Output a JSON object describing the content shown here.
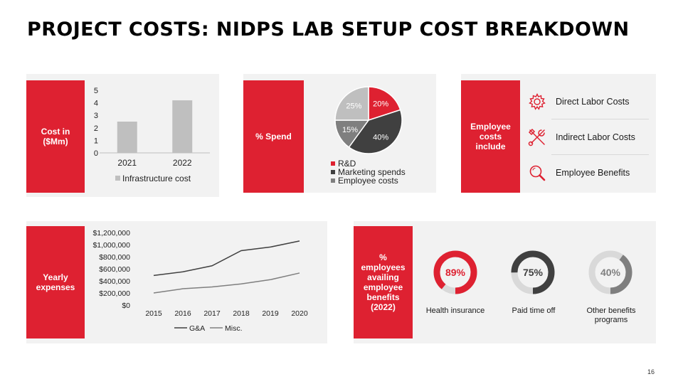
{
  "title": "PROJECT COSTS: NIDPS LAB SETUP COST BREAKDOWN",
  "page_number": "16",
  "colors": {
    "accent": "#de2131",
    "panel": "#f2f2f2",
    "bar": "#bfbfbf",
    "dark": "#404040",
    "mid": "#7f7f7f",
    "track": "#d9d9d9"
  },
  "panels": {
    "cost": {
      "label": "Cost in\n($Mm)"
    },
    "spend": {
      "label": "% Spend"
    },
    "employee": {
      "label": "Employee\ncosts\ninclude",
      "items": [
        {
          "label": "Direct Labor Costs",
          "icon": "gear-icon"
        },
        {
          "label": "Indirect Labor Costs",
          "icon": "tools-icon"
        },
        {
          "label": "Employee Benefits",
          "icon": "magnifier-icon"
        }
      ]
    },
    "yearly": {
      "label": "Yearly\nexpenses"
    },
    "benefits": {
      "label": "%\nemployees\navailing\nemployee\nbenefits\n(2022)"
    }
  },
  "chart_data": [
    {
      "type": "bar",
      "categories": [
        "2021",
        "2022"
      ],
      "series": [
        {
          "name": "Infrastructure cost",
          "values": [
            2.5,
            4.2
          ]
        }
      ],
      "yticks": [
        "0",
        "1",
        "2",
        "3",
        "4",
        "5"
      ],
      "ylim": [
        0,
        5
      ],
      "legend": "bottom"
    },
    {
      "type": "pie",
      "labels": [
        "R&D",
        "Marketing spends",
        "Employee costs",
        ""
      ],
      "values": [
        20,
        40,
        15,
        25
      ],
      "data_labels": [
        "20%",
        "40%",
        "15%",
        "25%"
      ],
      "colors": [
        "#de2131",
        "#404040",
        "#7f7f7f",
        "#bfbfbf"
      ],
      "legend": "bottom"
    },
    {
      "type": "line",
      "x": [
        "2015",
        "2016",
        "2017",
        "2018",
        "2019",
        "2020"
      ],
      "series": [
        {
          "name": "G&A",
          "values": [
            490000,
            550000,
            650000,
            900000,
            960000,
            1060000
          ],
          "color": "#404040"
        },
        {
          "name": "Misc.",
          "values": [
            200000,
            270000,
            300000,
            350000,
            420000,
            530000
          ],
          "color": "#7f7f7f"
        }
      ],
      "yticks": [
        "$0",
        "$200,000",
        "$400,000",
        "$600,000",
        "$800,000",
        "$1,000,000",
        "$1,200,000"
      ],
      "ylim": [
        0,
        1200000
      ],
      "legend": "bottom"
    },
    {
      "type": "donut",
      "items": [
        {
          "label": "Health insurance",
          "value": 89,
          "display": "89%",
          "color": "#de2131"
        },
        {
          "label": "Paid time off",
          "value": 75,
          "display": "75%",
          "color": "#404040"
        },
        {
          "label": "Other benefits\nprograms",
          "value": 40,
          "display": "40%",
          "color": "#7f7f7f"
        }
      ]
    }
  ]
}
